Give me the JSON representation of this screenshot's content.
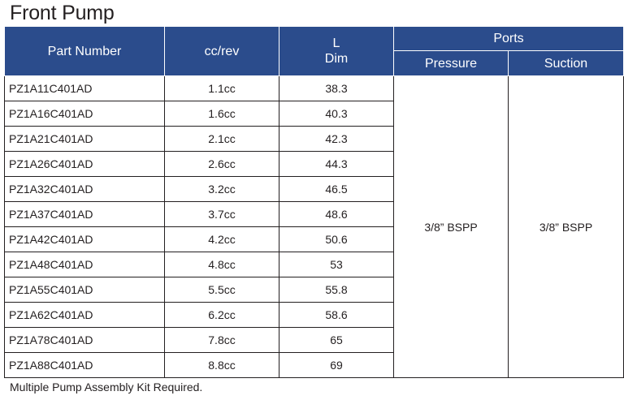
{
  "title": "Front Pump",
  "headers": {
    "part_number": "Part Number",
    "cc_rev": "cc/rev",
    "l_line1": "L",
    "l_line2": "Dim",
    "ports": "Ports",
    "pressure": "Pressure",
    "suction": "Suction"
  },
  "rows": [
    {
      "part": "PZ1A11C401AD",
      "cc": "1.1cc",
      "l": "38.3"
    },
    {
      "part": "PZ1A16C401AD",
      "cc": "1.6cc",
      "l": "40.3"
    },
    {
      "part": "PZ1A21C401AD",
      "cc": "2.1cc",
      "l": "42.3"
    },
    {
      "part": "PZ1A26C401AD",
      "cc": "2.6cc",
      "l": "44.3"
    },
    {
      "part": "PZ1A32C401AD",
      "cc": "3.2cc",
      "l": "46.5"
    },
    {
      "part": "PZ1A37C401AD",
      "cc": "3.7cc",
      "l": "48.6"
    },
    {
      "part": "PZ1A42C401AD",
      "cc": "4.2cc",
      "l": "50.6"
    },
    {
      "part": "PZ1A48C401AD",
      "cc": "4.8cc",
      "l": "53"
    },
    {
      "part": "PZ1A55C401AD",
      "cc": "5.5cc",
      "l": "55.8"
    },
    {
      "part": "PZ1A62C401AD",
      "cc": "6.2cc",
      "l": "58.6"
    },
    {
      "part": "PZ1A78C401AD",
      "cc": "7.8cc",
      "l": "65"
    },
    {
      "part": "PZ1A88C401AD",
      "cc": "8.8cc",
      "l": "69"
    }
  ],
  "ports": {
    "pressure": "3/8” BSPP",
    "suction": "3/8” BSPP"
  },
  "colors": {
    "header_bg": "#2b4c8c",
    "header_text": "#ffffff",
    "border": "#231f20"
  },
  "footnote": "Multiple Pump Assembly Kit Required."
}
